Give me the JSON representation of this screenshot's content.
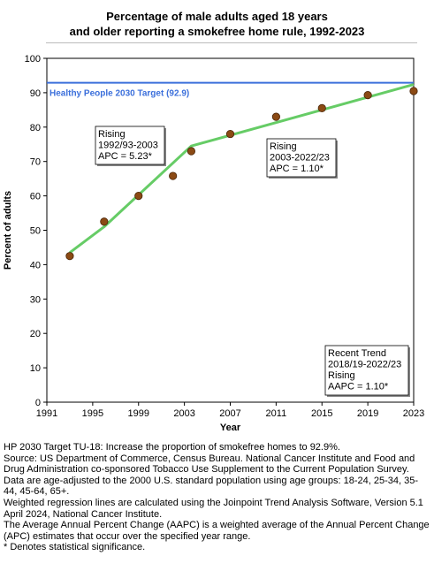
{
  "chart_data": {
    "type": "scatter",
    "title_line1": "Percentage of male adults aged 18 years",
    "title_line2": "and older reporting a smokefree home rule, 1992-2023",
    "xlabel": "Year",
    "ylabel": "Percent of adults",
    "xlim": [
      1991,
      2023
    ],
    "ylim": [
      0,
      100
    ],
    "x_ticks": [
      1991,
      1995,
      1999,
      2003,
      2007,
      2011,
      2015,
      2019,
      2023
    ],
    "y_ticks": [
      0,
      10,
      20,
      30,
      40,
      50,
      60,
      70,
      80,
      90,
      100
    ],
    "grid": false,
    "points": [
      {
        "x": 1993,
        "y": 42.5
      },
      {
        "x": 1996,
        "y": 52.5
      },
      {
        "x": 1999,
        "y": 60.0
      },
      {
        "x": 2002,
        "y": 65.8
      },
      {
        "x": 2003.6,
        "y": 73.0
      },
      {
        "x": 2007,
        "y": 78.0
      },
      {
        "x": 2011,
        "y": 83.0
      },
      {
        "x": 2015,
        "y": 85.5
      },
      {
        "x": 2019,
        "y": 89.3
      },
      {
        "x": 2023,
        "y": 90.5
      }
    ],
    "trend_line": [
      {
        "x": 1993,
        "y": 43.5
      },
      {
        "x": 1996,
        "y": 51.0
      },
      {
        "x": 2003.6,
        "y": 74.5
      },
      {
        "x": 2023,
        "y": 92.4
      }
    ],
    "target": {
      "value": 92.9,
      "label": "Healthy People 2030 Target (92.9)"
    },
    "annotations": [
      {
        "lines": [
          "Rising",
          "1992/93-2003",
          "APC =  5.23*"
        ]
      },
      {
        "lines": [
          "Rising",
          "2003-2022/23",
          "APC =  1.10*"
        ]
      },
      {
        "lines": [
          "Recent Trend",
          "2018/19-2022/23",
          "Rising",
          "AAPC =  1.10*"
        ]
      }
    ],
    "colors": {
      "point_fill": "#8b4a14",
      "point_stroke": "#4a2508",
      "trend_line": "#66cc66",
      "target_line": "#3b6fdb",
      "target_label": "#3b6fdb"
    }
  },
  "notes": [
    "HP 2030 Target TU-18: Increase the proportion of smokefree homes to 92.9%.",
    "Source: US Department of Commerce, Census Bureau. National Cancer Institute and Food and Drug Administration co-sponsored Tobacco Use Supplement to the Current Population Survey.",
    "Data are age-adjusted to the 2000 U.S. standard population using age groups: 18-24, 25-34, 35-44, 45-64, 65+.",
    "Weighted regression lines are calculated using the Joinpoint Trend Analysis Software, Version 5.1 April 2024, National Cancer Institute.",
    "The Average Annual Percent Change (AAPC) is a weighted average of the Annual Percent Change (APC) estimates that occur over the specified year range.",
    "* Denotes statistical significance."
  ]
}
